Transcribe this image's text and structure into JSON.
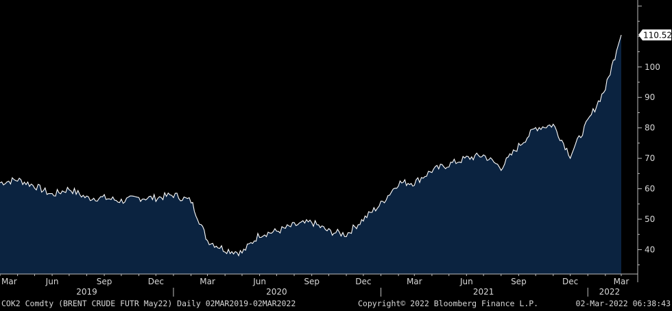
{
  "chart_data": {
    "type": "area",
    "ylim": [
      32,
      122
    ],
    "y_ticks": [
      40,
      50,
      60,
      70,
      80,
      90,
      100
    ],
    "last_value": 110.52,
    "last_value_label": "110.52",
    "x_month_labels": [
      "Mar",
      "Jun",
      "Sep",
      "Dec",
      "Mar",
      "Jun",
      "Sep",
      "Dec",
      "Mar",
      "Jun",
      "Sep",
      "Dec",
      "Mar"
    ],
    "years": [
      "2019",
      "2020",
      "2021",
      "2022"
    ],
    "x": [
      "2019-03",
      "2019-04",
      "2019-05",
      "2019-06",
      "2019-07",
      "2019-08",
      "2019-09",
      "2019-10",
      "2019-11",
      "2019-12",
      "2020-01",
      "2020-02",
      "2020-03",
      "2020-04",
      "2020-05",
      "2020-06",
      "2020-07",
      "2020-08",
      "2020-09",
      "2020-10",
      "2020-11",
      "2020-12",
      "2021-01",
      "2021-02",
      "2021-03",
      "2021-04",
      "2021-05",
      "2021-06",
      "2021-07",
      "2021-08",
      "2021-09",
      "2021-10",
      "2021-11",
      "2021-12",
      "2022-01",
      "2022-02",
      "2022-03"
    ],
    "values": [
      62,
      63,
      61,
      58,
      60,
      57,
      57,
      56,
      57,
      57,
      58,
      56,
      43,
      40,
      39,
      45,
      46,
      48,
      49,
      46,
      45,
      50,
      55,
      62,
      62,
      66,
      68,
      70,
      71,
      67,
      74,
      80,
      81,
      71,
      82,
      93,
      110.52
    ],
    "series_color": "#0b2340",
    "line_color": "#ffffff"
  },
  "footer": {
    "ticker": "COK2 Comdty (BRENT CRUDE FUTR  May22)  Daily 02MAR2019-02MAR2022",
    "copyright": "Copyright© 2022 Bloomberg Finance L.P.",
    "timestamp": "02-Mar-2022 06:38:43"
  }
}
